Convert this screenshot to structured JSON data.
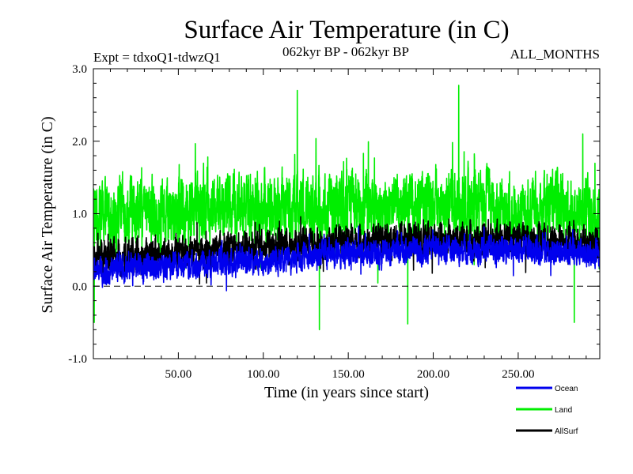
{
  "chart_data": {
    "type": "line",
    "title": "Surface Air Temperature (in C)",
    "subtitle_left": "Expt = tdxoQ1-tdwzQ1",
    "subtitle_center": "062kyr BP - 062kyr BP",
    "subtitle_right": "ALL_MONTHS",
    "xlabel": "Time (in years since start)",
    "ylabel": "Surface Air Temperature (in C)",
    "xlim": [
      0,
      298
    ],
    "ylim": [
      -1.0,
      3.0
    ],
    "x_ticks": [
      50,
      100,
      150,
      200,
      250
    ],
    "x_tick_labels": [
      "50.00",
      "100.00",
      "150.00",
      "200.00",
      "250.00"
    ],
    "y_ticks": [
      -1.0,
      0.0,
      1.0,
      2.0,
      3.0
    ],
    "y_tick_labels": [
      "-1.0",
      "0.0",
      "1.0",
      "2.0",
      "3.0"
    ],
    "zero_line": 0.0,
    "samples_per_year": 12,
    "series": [
      {
        "name": "Land",
        "color": "#00ee00",
        "trend": {
          "x": [
            0,
            50,
            100,
            150,
            200,
            250,
            298
          ],
          "y": [
            1.0,
            1.05,
            1.1,
            1.1,
            1.15,
            1.1,
            1.05
          ]
        },
        "noise_amplitude": 0.45,
        "min": -0.6,
        "max": 2.77,
        "notable_points": [
          {
            "x": 120,
            "y": 2.7
          },
          {
            "x": 215,
            "y": 2.77
          },
          {
            "x": 133,
            "y": -0.6
          },
          {
            "x": 185,
            "y": -0.52
          },
          {
            "x": 283,
            "y": -0.5
          },
          {
            "x": 0.5,
            "y": -0.5
          },
          {
            "x": 288,
            "y": 2.1
          }
        ]
      },
      {
        "name": "AllSurf",
        "color": "#000000",
        "trend": {
          "x": [
            0,
            50,
            100,
            150,
            200,
            250,
            298
          ],
          "y": [
            0.4,
            0.45,
            0.55,
            0.6,
            0.65,
            0.65,
            0.6
          ]
        },
        "noise_amplitude": 0.22,
        "min": -0.2,
        "max": 1.4
      },
      {
        "name": "Ocean",
        "color": "#0000ee",
        "trend": {
          "x": [
            0,
            50,
            100,
            150,
            200,
            250,
            298
          ],
          "y": [
            0.2,
            0.3,
            0.35,
            0.45,
            0.5,
            0.5,
            0.45
          ]
        },
        "noise_amplitude": 0.18,
        "min": -0.3,
        "max": 0.95
      }
    ],
    "legend": {
      "placement": "bottom-right, below plot",
      "entries": [
        {
          "label": "Ocean",
          "color": "#0000ee"
        },
        {
          "label": "Land",
          "color": "#00ee00"
        },
        {
          "label": "AllSurf",
          "color": "#000000"
        }
      ]
    }
  }
}
